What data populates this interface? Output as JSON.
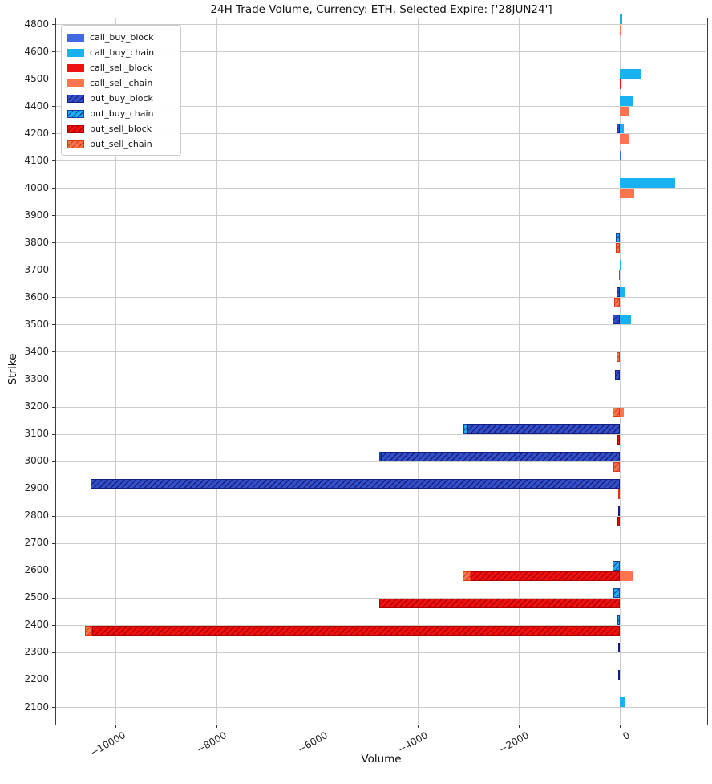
{
  "chart_data": {
    "type": "bar",
    "orientation": "horizontal",
    "title": "24H Trade Volume, Currency: ETH, Selected Expire: ['28JUN24']",
    "xlabel": "Volume",
    "ylabel": "Strike",
    "x_ticks": [
      -10000,
      -8000,
      -6000,
      -4000,
      -2000,
      0
    ],
    "xlim": [
      -11200,
      1730
    ],
    "grid": true,
    "legend_position": "upper-left",
    "legend": [
      {
        "key": "call_buy_block",
        "label": "call_buy_block"
      },
      {
        "key": "call_buy_chain",
        "label": "call_buy_chain"
      },
      {
        "key": "call_sell_block",
        "label": "call_sell_block"
      },
      {
        "key": "call_sell_chain",
        "label": "call_sell_chain"
      },
      {
        "key": "put_buy_block",
        "label": "put_buy_block"
      },
      {
        "key": "put_buy_chain",
        "label": "put_buy_chain"
      },
      {
        "key": "put_sell_block",
        "label": "put_sell_block"
      },
      {
        "key": "put_sell_chain",
        "label": "put_sell_chain"
      }
    ],
    "colors": {
      "call_buy_block": "#4169E1",
      "call_buy_chain": "#18B2F0",
      "call_sell_block": "#EE1111",
      "call_sell_chain": "#FA7450",
      "put_buy_block": "#3350C8",
      "put_buy_chain": "#18B2F0",
      "put_sell_block": "#EE1111",
      "put_sell_chain": "#FA7450"
    },
    "strikes": [
      {
        "strike": 4800,
        "call_buy_chain": 50,
        "call_sell_chain": 25
      },
      {
        "strike": 4600
      },
      {
        "strike": 4500,
        "call_buy_chain": 415,
        "call_sell_block": 20
      },
      {
        "strike": 4400,
        "call_buy_chain": 270,
        "call_sell_chain": 190
      },
      {
        "strike": 4200,
        "call_buy_chain": 80,
        "put_buy_block": -60,
        "call_sell_chain": 190
      },
      {
        "strike": 4100,
        "call_buy_block": 25
      },
      {
        "strike": 4000,
        "call_buy_chain": 1100,
        "call_sell_chain": 280
      },
      {
        "strike": 3900
      },
      {
        "strike": 3800,
        "put_buy_chain": -80,
        "put_sell_chain": -80
      },
      {
        "strike": 3700,
        "call_buy_chain": 20,
        "put_sell_chain": -20
      },
      {
        "strike": 3600,
        "call_buy_chain": 100,
        "put_buy_block": -70,
        "put_sell_chain": -110
      },
      {
        "strike": 3500,
        "call_buy_chain": 220,
        "put_buy_block": -140
      },
      {
        "strike": 3400,
        "put_sell_chain": -60
      },
      {
        "strike": 3300,
        "put_buy_block": -90
      },
      {
        "strike": 3200,
        "call_sell_chain": 80,
        "put_sell_chain": -140
      },
      {
        "strike": 3100,
        "put_buy_block": -3020,
        "put_buy_chain": -80,
        "put_sell_block": -40
      },
      {
        "strike": 3000,
        "put_buy_block": -4740,
        "put_buy_chain": -30,
        "put_sell_chain": -120
      },
      {
        "strike": 2900,
        "put_buy_block": -10490,
        "put_sell_chain": -30
      },
      {
        "strike": 2800,
        "put_buy_block": -25,
        "put_sell_block": -40
      },
      {
        "strike": 2700
      },
      {
        "strike": 2600,
        "put_buy_chain": -150,
        "call_sell_chain": 270,
        "put_sell_block": -2960,
        "put_sell_chain": -160
      },
      {
        "strike": 2500,
        "put_buy_chain": -130,
        "put_sell_block": -4770
      },
      {
        "strike": 2400,
        "put_buy_chain": -40,
        "put_sell_block": -10460,
        "put_sell_chain": -145
      },
      {
        "strike": 2300,
        "put_buy_block": -25
      },
      {
        "strike": 2200,
        "put_buy_block": -25
      },
      {
        "strike": 2100,
        "call_buy_chain": 90
      }
    ]
  }
}
